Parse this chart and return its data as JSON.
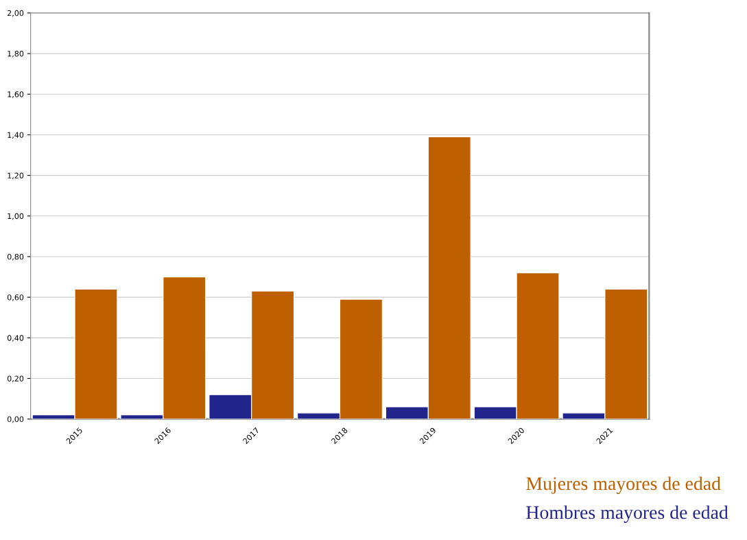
{
  "chart_data": {
    "type": "bar",
    "categories": [
      "2015",
      "2016",
      "2017",
      "2018",
      "2019",
      "2020",
      "2021"
    ],
    "series": [
      {
        "name": "Hombres mayores de edad",
        "color": "#22268c",
        "values": [
          0.02,
          0.02,
          0.12,
          0.03,
          0.06,
          0.06,
          0.03
        ]
      },
      {
        "name": "Mujeres mayores de edad",
        "color": "#bf6000",
        "values": [
          0.64,
          0.7,
          0.63,
          0.59,
          1.39,
          0.72,
          0.64
        ]
      }
    ],
    "ylim": [
      0,
      2
    ],
    "yticks": [
      {
        "value": 0,
        "label": "0,00"
      },
      {
        "value": 0.2,
        "label": "0,20"
      },
      {
        "value": 0.4,
        "label": "0,40"
      },
      {
        "value": 0.6,
        "label": "0,60"
      },
      {
        "value": 0.8,
        "label": "0,80"
      },
      {
        "value": 1.0,
        "label": "1,00"
      },
      {
        "value": 1.2,
        "label": "1,20"
      },
      {
        "value": 1.4,
        "label": "1,40"
      },
      {
        "value": 1.6,
        "label": "1,60"
      },
      {
        "value": 1.8,
        "label": "1,80"
      },
      {
        "value": 2.0,
        "label": "2,00"
      }
    ],
    "grid": "y",
    "legend": "bottom right"
  }
}
